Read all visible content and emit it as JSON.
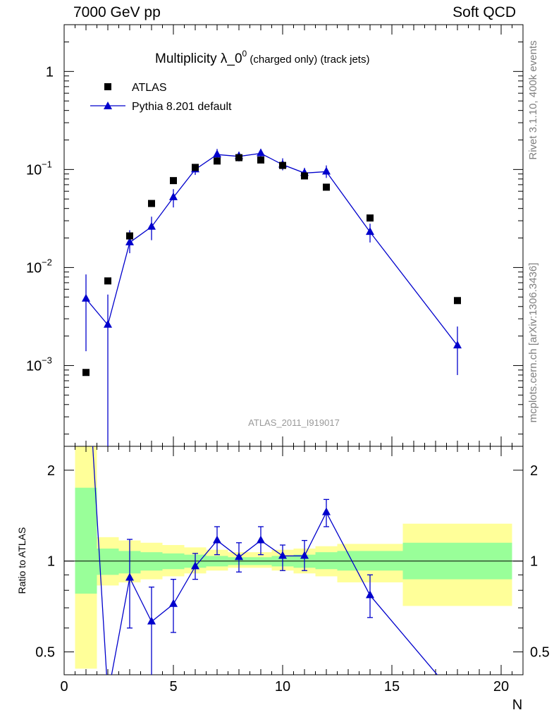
{
  "header": {
    "left": "7000 GeV pp",
    "right": "Soft QCD"
  },
  "side": {
    "rivet": "Rivet 3.1.10,  400k events",
    "mcplots": "mcplots.cern.ch [arXiv:1306.3436]"
  },
  "chart_data": [
    {
      "type": "scatter",
      "title_main": "Multiplicity λ_0",
      "title_sup": "0",
      "title_suffix": " (charged only) (track jets)",
      "watermark": "ATLAS_2011_I919017",
      "yscale": "log",
      "xlim": [
        0,
        21
      ],
      "ylim": [
        0.00015,
        3
      ],
      "y_ticks": [
        {
          "value": 0.001,
          "label": "10",
          "exp": "−3"
        },
        {
          "value": 0.01,
          "label": "10",
          "exp": "−2"
        },
        {
          "value": 0.1,
          "label": "10",
          "exp": "−1"
        },
        {
          "value": 1,
          "label": "1",
          "exp": ""
        }
      ],
      "legend": [
        "ATLAS",
        "Pythia 8.201 default"
      ],
      "series": [
        {
          "name": "ATLAS",
          "style": "square-markers",
          "color": "#000000",
          "x": [
            1,
            2,
            3,
            4,
            5,
            6,
            7,
            8,
            9,
            10,
            11,
            12,
            14,
            18
          ],
          "y": [
            0.00085,
            0.0073,
            0.021,
            0.045,
            0.077,
            0.105,
            0.122,
            0.132,
            0.125,
            0.11,
            0.086,
            0.066,
            0.032,
            0.0046
          ]
        },
        {
          "name": "Pythia 8.201 default",
          "style": "line-triangles",
          "color": "#0000cc",
          "x": [
            1,
            2,
            3,
            4,
            5,
            6,
            7,
            8,
            9,
            10,
            11,
            12,
            14,
            18
          ],
          "y": [
            0.0048,
            0.0026,
            0.018,
            0.026,
            0.052,
            0.1,
            0.142,
            0.136,
            0.146,
            0.112,
            0.092,
            0.095,
            0.023,
            0.0016
          ],
          "y_low": [
            0.0014,
            0.0001,
            0.014,
            0.019,
            0.041,
            0.088,
            0.126,
            0.121,
            0.13,
            0.098,
            0.08,
            0.082,
            0.018,
            0.0008
          ],
          "y_high": [
            0.0085,
            0.0053,
            0.024,
            0.033,
            0.063,
            0.113,
            0.162,
            0.152,
            0.162,
            0.13,
            0.104,
            0.11,
            0.028,
            0.0025
          ]
        }
      ]
    },
    {
      "type": "line",
      "ylabel": "Ratio to ATLAS",
      "xlabel": "N",
      "yscale": "log",
      "xlim": [
        0,
        21
      ],
      "ylim": [
        0.42,
        2.4
      ],
      "x_ticks": [
        0,
        5,
        10,
        15,
        20
      ],
      "y_ticks": [
        0.5,
        1,
        2
      ],
      "reference": 1,
      "bands": [
        {
          "x0": 0.5,
          "x1": 1.5,
          "inner": [
            0.78,
            1.75
          ],
          "outer": [
            0.44,
            2.4
          ]
        },
        {
          "x0": 1.5,
          "x1": 2.5,
          "inner": [
            0.9,
            1.1
          ],
          "outer": [
            0.83,
            1.2
          ]
        },
        {
          "x0": 2.5,
          "x1": 3.5,
          "inner": [
            0.91,
            1.08
          ],
          "outer": [
            0.85,
            1.17
          ]
        },
        {
          "x0": 3.5,
          "x1": 4.5,
          "inner": [
            0.93,
            1.07
          ],
          "outer": [
            0.87,
            1.15
          ]
        },
        {
          "x0": 4.5,
          "x1": 5.5,
          "inner": [
            0.94,
            1.06
          ],
          "outer": [
            0.89,
            1.13
          ]
        },
        {
          "x0": 5.5,
          "x1": 6.5,
          "inner": [
            0.95,
            1.05
          ],
          "outer": [
            0.91,
            1.11
          ]
        },
        {
          "x0": 6.5,
          "x1": 7.5,
          "inner": [
            0.96,
            1.04
          ],
          "outer": [
            0.93,
            1.09
          ]
        },
        {
          "x0": 7.5,
          "x1": 8.5,
          "inner": [
            0.97,
            1.03
          ],
          "outer": [
            0.95,
            1.07
          ]
        },
        {
          "x0": 8.5,
          "x1": 9.5,
          "inner": [
            0.97,
            1.03
          ],
          "outer": [
            0.95,
            1.07
          ]
        },
        {
          "x0": 9.5,
          "x1": 10.5,
          "inner": [
            0.96,
            1.04
          ],
          "outer": [
            0.93,
            1.09
          ]
        },
        {
          "x0": 10.5,
          "x1": 11.5,
          "inner": [
            0.95,
            1.05
          ],
          "outer": [
            0.91,
            1.1
          ]
        },
        {
          "x0": 11.5,
          "x1": 12.5,
          "inner": [
            0.94,
            1.07
          ],
          "outer": [
            0.89,
            1.12
          ]
        },
        {
          "x0": 12.5,
          "x1": 15.5,
          "inner": [
            0.93,
            1.08
          ],
          "outer": [
            0.85,
            1.14
          ]
        },
        {
          "x0": 15.5,
          "x1": 20.5,
          "inner": [
            0.87,
            1.15
          ],
          "outer": [
            0.71,
            1.33
          ]
        }
      ],
      "series": [
        {
          "name": "Pythia 8.201 default",
          "color": "#0000cc",
          "x": [
            1,
            2,
            3,
            4,
            5,
            6,
            7,
            8,
            9,
            10,
            11,
            12,
            14,
            18
          ],
          "y": [
            5.6,
            0.36,
            0.88,
            0.63,
            0.72,
            0.96,
            1.17,
            1.03,
            1.17,
            1.04,
            1.04,
            1.45,
            0.77,
            0.35
          ],
          "y_low": [
            null,
            null,
            0.6,
            0.4,
            0.58,
            0.87,
            1.05,
            0.92,
            1.05,
            0.93,
            0.93,
            1.3,
            0.65,
            null
          ],
          "y_high": [
            null,
            null,
            1.18,
            0.82,
            0.87,
            1.06,
            1.3,
            1.15,
            1.3,
            1.13,
            1.17,
            1.6,
            0.9,
            null
          ]
        }
      ]
    }
  ]
}
